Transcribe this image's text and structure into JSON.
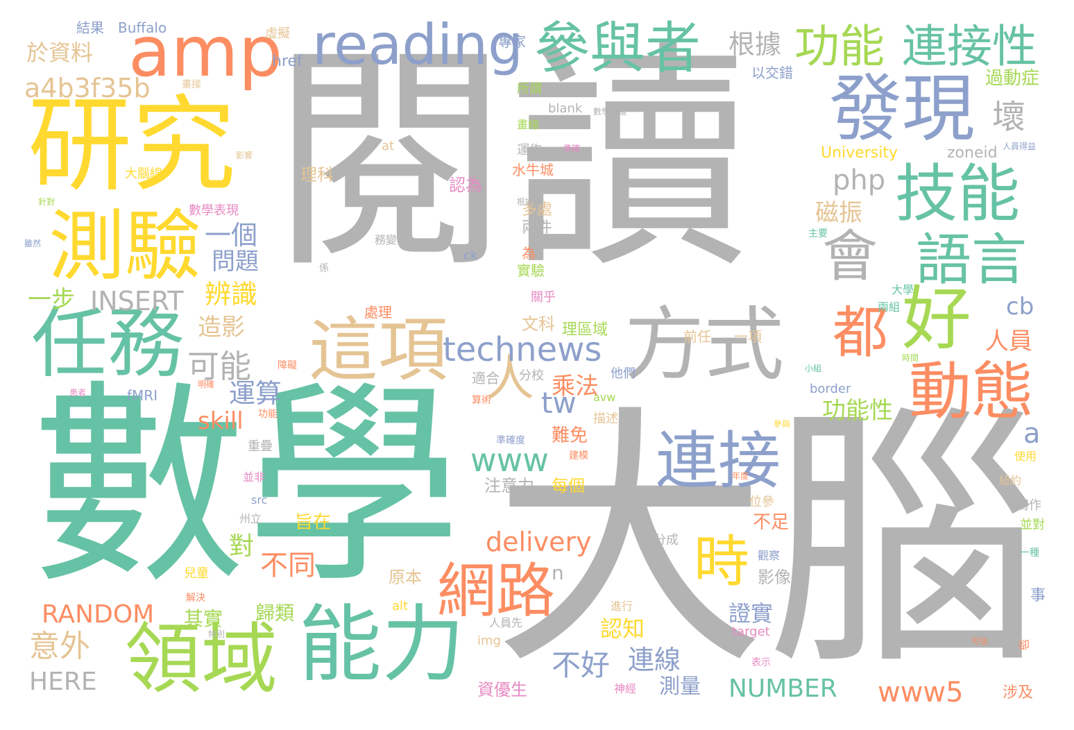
{
  "palette": {
    "gray": "#b3b3b3",
    "teal": "#66c2a5",
    "orange": "#fc8d62",
    "blue": "#8da0cb",
    "pink": "#e78ac3",
    "lime": "#a6d854",
    "yellow": "#ffd92f",
    "tan": "#e5c494"
  },
  "words": [
    {
      "text": "閱讀",
      "color": "gray"
    },
    {
      "text": "數學",
      "color": "teal"
    },
    {
      "text": "大腦",
      "color": "gray"
    },
    {
      "text": "研究",
      "color": "yellow"
    },
    {
      "text": "amp",
      "color": "orange"
    },
    {
      "text": "測驗",
      "color": "yellow"
    },
    {
      "text": "任務",
      "color": "teal"
    },
    {
      "text": "領域",
      "color": "lime"
    },
    {
      "text": "能力",
      "color": "teal"
    },
    {
      "text": "reading",
      "color": "blue"
    },
    {
      "text": "參與者",
      "color": "teal"
    },
    {
      "text": "發現",
      "color": "blue"
    },
    {
      "text": "技能",
      "color": "teal"
    },
    {
      "text": "會",
      "color": "gray"
    },
    {
      "text": "語言",
      "color": "teal"
    },
    {
      "text": "好",
      "color": "lime"
    },
    {
      "text": "方式",
      "color": "gray"
    },
    {
      "text": "都",
      "color": "orange"
    },
    {
      "text": "動態",
      "color": "orange"
    },
    {
      "text": "這項",
      "color": "tan"
    },
    {
      "text": "人",
      "color": "tan"
    },
    {
      "text": "連接",
      "color": "blue"
    },
    {
      "text": "時",
      "color": "yellow"
    },
    {
      "text": "網路",
      "color": "orange"
    },
    {
      "text": "功能",
      "color": "lime"
    },
    {
      "text": "連接性",
      "color": "teal"
    },
    {
      "text": "technews",
      "color": "blue"
    },
    {
      "text": "www",
      "color": "teal"
    },
    {
      "text": "tw",
      "color": "blue"
    },
    {
      "text": "a4b3f35b",
      "color": "tan"
    },
    {
      "text": "根據",
      "color": "gray"
    },
    {
      "text": "壞",
      "color": "gray"
    },
    {
      "text": "php",
      "color": "gray"
    },
    {
      "text": "磁振",
      "color": "tan"
    },
    {
      "text": "一個",
      "color": "blue"
    },
    {
      "text": "問題",
      "color": "blue"
    },
    {
      "text": "可能",
      "color": "gray"
    },
    {
      "text": "INSERT",
      "color": "gray"
    },
    {
      "text": "辨識",
      "color": "yellow"
    },
    {
      "text": "一步",
      "color": "lime"
    },
    {
      "text": "造影",
      "color": "tan"
    },
    {
      "text": "運算",
      "color": "blue"
    },
    {
      "text": "skill",
      "color": "orange"
    },
    {
      "text": "乘法",
      "color": "orange"
    },
    {
      "text": "功能性",
      "color": "lime"
    },
    {
      "text": "人員",
      "color": "orange"
    },
    {
      "text": "cb",
      "color": "blue"
    },
    {
      "text": "a",
      "color": "blue"
    },
    {
      "text": "delivery",
      "color": "orange"
    },
    {
      "text": "不好",
      "color": "blue"
    },
    {
      "text": "不同",
      "color": "orange"
    },
    {
      "text": "RANDOM",
      "color": "orange"
    },
    {
      "text": "意外",
      "color": "tan"
    },
    {
      "text": "HERE",
      "color": "gray"
    },
    {
      "text": "NUMBER",
      "color": "teal"
    },
    {
      "text": "www5",
      "color": "orange"
    },
    {
      "text": "連線",
      "color": "blue"
    },
    {
      "text": "測量",
      "color": "blue"
    },
    {
      "text": "認知",
      "color": "yellow"
    },
    {
      "text": "證實",
      "color": "blue"
    },
    {
      "text": "於資料",
      "color": "tan"
    },
    {
      "text": "對",
      "color": "lime"
    },
    {
      "text": "其實",
      "color": "lime"
    },
    {
      "text": "歸類",
      "color": "lime"
    },
    {
      "text": "n",
      "color": "gray"
    },
    {
      "text": "過動症",
      "color": "lime"
    },
    {
      "text": "University",
      "color": "yellow"
    },
    {
      "text": "zoneid",
      "color": "gray"
    },
    {
      "text": "以交錯",
      "color": "blue"
    },
    {
      "text": "href",
      "color": "blue"
    },
    {
      "text": "Buffalo",
      "color": "blue"
    },
    {
      "text": "結果",
      "color": "blue"
    },
    {
      "text": "專家",
      "color": "blue"
    },
    {
      "text": "虛擬",
      "color": "tan"
    },
    {
      "text": "所謂",
      "color": "lime"
    },
    {
      "text": "blank",
      "color": "gray"
    },
    {
      "text": "畫線",
      "color": "lime"
    },
    {
      "text": "at",
      "color": "tan"
    },
    {
      "text": "運作",
      "color": "gray"
    },
    {
      "text": "水牛城",
      "color": "orange"
    },
    {
      "text": "理科",
      "color": "tan"
    },
    {
      "text": "認為",
      "color": "pink"
    },
    {
      "text": "多處",
      "color": "tan"
    },
    {
      "text": "兩件",
      "color": "gray"
    },
    {
      "text": "為",
      "color": "orange"
    },
    {
      "text": "實驗",
      "color": "lime"
    },
    {
      "text": "文科",
      "color": "tan"
    },
    {
      "text": "理區域",
      "color": "lime"
    },
    {
      "text": "數學表現",
      "color": "pink"
    },
    {
      "text": "大腦線",
      "color": "yellow"
    },
    {
      "text": "ck",
      "color": "blue"
    },
    {
      "text": "大學",
      "color": "teal"
    },
    {
      "text": "兩組",
      "color": "teal"
    },
    {
      "text": "前任",
      "color": "tan"
    },
    {
      "text": "一項",
      "color": "tan"
    },
    {
      "text": "處理",
      "color": "orange"
    },
    {
      "text": "關乎",
      "color": "pink"
    },
    {
      "text": "適合",
      "color": "gray"
    },
    {
      "text": "分校",
      "color": "gray"
    },
    {
      "text": "他們",
      "color": "blue"
    },
    {
      "text": "fMRI",
      "color": "blue"
    },
    {
      "text": "avw",
      "color": "lime"
    },
    {
      "text": "border",
      "color": "blue"
    },
    {
      "text": "描述",
      "color": "tan"
    },
    {
      "text": "難免",
      "color": "orange"
    },
    {
      "text": "注意力",
      "color": "gray"
    },
    {
      "text": "每個",
      "color": "yellow"
    },
    {
      "text": "使用",
      "color": "yellow"
    },
    {
      "text": "紐約",
      "color": "tan"
    },
    {
      "text": "寫作",
      "color": "gray"
    },
    {
      "text": "並對",
      "color": "lime"
    },
    {
      "text": "src",
      "color": "blue"
    },
    {
      "text": "州立",
      "color": "gray"
    },
    {
      "text": "旨在",
      "color": "yellow"
    },
    {
      "text": "分成",
      "color": "gray"
    },
    {
      "text": "不足",
      "color": "orange"
    },
    {
      "text": "位參",
      "color": "tan"
    },
    {
      "text": "原本",
      "color": "tan"
    },
    {
      "text": "影像",
      "color": "gray"
    },
    {
      "text": "事",
      "color": "blue"
    },
    {
      "text": "觀察",
      "color": "blue"
    },
    {
      "text": "alt",
      "color": "yellow"
    },
    {
      "text": "進行",
      "color": "tan"
    },
    {
      "text": "target",
      "color": "pink"
    },
    {
      "text": "img",
      "color": "tan"
    },
    {
      "text": "資優生",
      "color": "pink"
    },
    {
      "text": "涉及",
      "color": "orange"
    },
    {
      "text": "兒童",
      "color": "yellow"
    },
    {
      "text": "解決",
      "color": "orange"
    },
    {
      "text": "人員先",
      "color": "gray"
    },
    {
      "text": "神經",
      "color": "pink"
    },
    {
      "text": "障礙",
      "color": "orange"
    },
    {
      "text": "重疊",
      "color": "gray"
    },
    {
      "text": "並非",
      "color": "pink"
    },
    {
      "text": "建模",
      "color": "orange"
    },
    {
      "text": "算術",
      "color": "orange"
    },
    {
      "text": "功能",
      "color": "orange"
    },
    {
      "text": "準確度",
      "color": "blue"
    },
    {
      "text": "務變化",
      "color": "gray"
    },
    {
      "text": "主要",
      "color": "teal"
    },
    {
      "text": "係",
      "color": "gray"
    },
    {
      "text": "畫接",
      "color": "tan"
    },
    {
      "text": "表示",
      "color": "pink"
    },
    {
      "text": "卻",
      "color": "orange"
    },
    {
      "text": "一種",
      "color": "teal"
    },
    {
      "text": "影響",
      "color": "tan"
    },
    {
      "text": "針對",
      "color": "lime"
    },
    {
      "text": "雖然",
      "color": "blue"
    },
    {
      "text": "準確",
      "color": "pink"
    },
    {
      "text": "根據當",
      "color": "gray"
    },
    {
      "text": "數學小組",
      "color": "gray"
    },
    {
      "text": "人員得益",
      "color": "blue"
    },
    {
      "text": "明確",
      "color": "orange"
    },
    {
      "text": "患者",
      "color": "pink"
    },
    {
      "text": "可信",
      "color": "orange"
    },
    {
      "text": "特別",
      "color": "gray"
    },
    {
      "text": "時間",
      "color": "lime"
    },
    {
      "text": "小組",
      "color": "teal"
    },
    {
      "text": "參與",
      "color": "yellow"
    },
    {
      "text": "年度",
      "color": "orange"
    }
  ]
}
